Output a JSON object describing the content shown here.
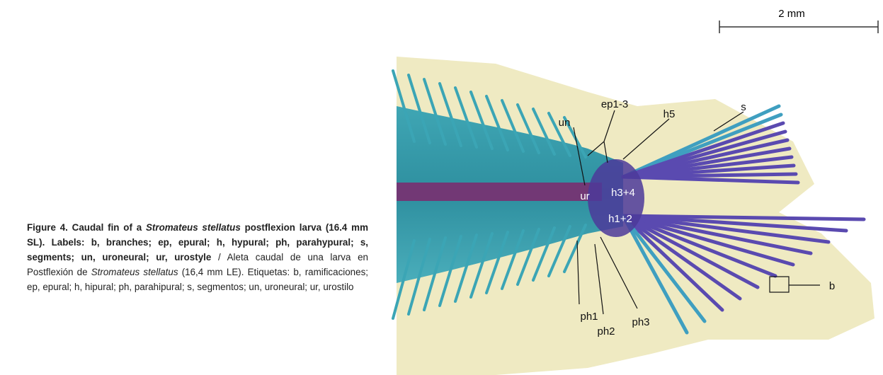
{
  "figure": {
    "caption": [
      {
        "text": "Figure 4. Caudal fin of a ",
        "style": "bold"
      },
      {
        "text": "Stromateus stellatus",
        "style": "bold-italic"
      },
      {
        "text": " postflexion larva (16.4 mm SL). Labels: b, branches; ep, epural; h, hypural; ph, parahypural; s, segments; un, uroneural; ur, urostyle",
        "style": "bold"
      },
      {
        "text": " / Aleta caudal de una larva en Postflexión de ",
        "style": "normal"
      },
      {
        "text": "Stromateus stellatus",
        "style": "italic"
      },
      {
        "text": " (16,4 mm LE). Etiquetas: b, ramificaciones; ep, epural; h, hipural; ph, parahipural; s, segmentos; un, uroneural; ur, urostilo",
        "style": "normal"
      }
    ],
    "scale_bar": "2 mm",
    "labels": [
      "un",
      "ep1-3",
      "h5",
      "s",
      "ur",
      "h3+4",
      "h1+2",
      "ph1",
      "ph2",
      "ph3",
      "b"
    ]
  }
}
